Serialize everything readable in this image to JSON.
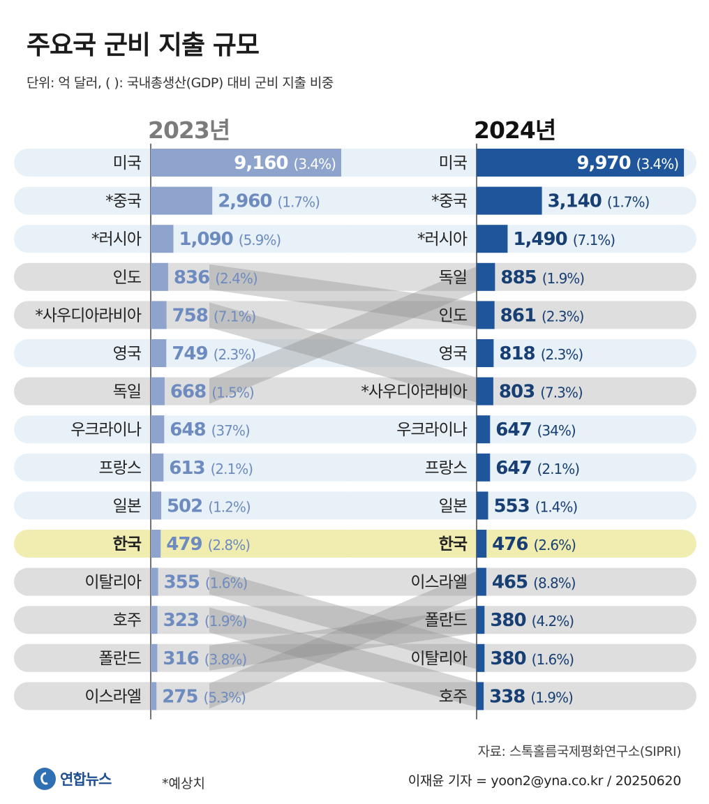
{
  "title": "주요국 군비 지출 규모",
  "subtitle": "단위: 억 달러, ( ): 국내총생산(GDP) 대비 군비 지출 비중",
  "logo_text": "연합뉴스",
  "note": "*예상치",
  "source": "자료: 스톡홀름국제평화연구소(SIPRI)",
  "reporter": "이재윤 기자 = yoon2@yna.co.kr / 20250620",
  "colors": {
    "bar_2023": "#8ea4cc",
    "bar_2024": "#1f569b",
    "label_2023": "#6d8bbf",
    "label_2024": "#173f73",
    "row_blue": "#e9f1f8",
    "row_gray": "#dedede",
    "row_korea": "#f1edb0",
    "connector": "#8a8a8a"
  },
  "chart_data": {
    "type": "bar",
    "units": "억 달러",
    "highlight": "한국",
    "panels": [
      {
        "year": "2023년",
        "rows": [
          {
            "country": "미국",
            "value": 9160,
            "value_label": "9,160",
            "gdp_share": "(3.4%)"
          },
          {
            "country": "*중국",
            "value": 2960,
            "value_label": "2,960",
            "gdp_share": "(1.7%)"
          },
          {
            "country": "*러시아",
            "value": 1090,
            "value_label": "1,090",
            "gdp_share": "(5.9%)"
          },
          {
            "country": "인도",
            "value": 836,
            "value_label": "836",
            "gdp_share": "(2.4%)"
          },
          {
            "country": "*사우디아라비아",
            "value": 758,
            "value_label": "758",
            "gdp_share": "(7.1%)"
          },
          {
            "country": "영국",
            "value": 749,
            "value_label": "749",
            "gdp_share": "(2.3%)"
          },
          {
            "country": "독일",
            "value": 668,
            "value_label": "668",
            "gdp_share": "(1.5%)"
          },
          {
            "country": "우크라이나",
            "value": 648,
            "value_label": "648",
            "gdp_share": "(37%)"
          },
          {
            "country": "프랑스",
            "value": 613,
            "value_label": "613",
            "gdp_share": "(2.1%)"
          },
          {
            "country": "일본",
            "value": 502,
            "value_label": "502",
            "gdp_share": "(1.2%)"
          },
          {
            "country": "한국",
            "value": 479,
            "value_label": "479",
            "gdp_share": "(2.8%)"
          },
          {
            "country": "이탈리아",
            "value": 355,
            "value_label": "355",
            "gdp_share": "(1.6%)"
          },
          {
            "country": "호주",
            "value": 323,
            "value_label": "323",
            "gdp_share": "(1.9%)"
          },
          {
            "country": "폴란드",
            "value": 316,
            "value_label": "316",
            "gdp_share": "(3.8%)"
          },
          {
            "country": "이스라엘",
            "value": 275,
            "value_label": "275",
            "gdp_share": "(5.3%)"
          }
        ]
      },
      {
        "year": "2024년",
        "rows": [
          {
            "country": "미국",
            "value": 9970,
            "value_label": "9,970",
            "gdp_share": "(3.4%)"
          },
          {
            "country": "*중국",
            "value": 3140,
            "value_label": "3,140",
            "gdp_share": "(1.7%)"
          },
          {
            "country": "*러시아",
            "value": 1490,
            "value_label": "1,490",
            "gdp_share": "(7.1%)"
          },
          {
            "country": "독일",
            "value": 885,
            "value_label": "885",
            "gdp_share": "(1.9%)"
          },
          {
            "country": "인도",
            "value": 861,
            "value_label": "861",
            "gdp_share": "(2.3%)"
          },
          {
            "country": "영국",
            "value": 818,
            "value_label": "818",
            "gdp_share": "(2.3%)"
          },
          {
            "country": "*사우디아라비아",
            "value": 803,
            "value_label": "803",
            "gdp_share": "(7.3%)"
          },
          {
            "country": "우크라이나",
            "value": 647,
            "value_label": "647",
            "gdp_share": "(34%)"
          },
          {
            "country": "프랑스",
            "value": 647,
            "value_label": "647",
            "gdp_share": "(2.1%)"
          },
          {
            "country": "일본",
            "value": 553,
            "value_label": "553",
            "gdp_share": "(1.4%)"
          },
          {
            "country": "한국",
            "value": 476,
            "value_label": "476",
            "gdp_share": "(2.6%)"
          },
          {
            "country": "이스라엘",
            "value": 465,
            "value_label": "465",
            "gdp_share": "(8.8%)"
          },
          {
            "country": "폴란드",
            "value": 380,
            "value_label": "380",
            "gdp_share": "(4.2%)"
          },
          {
            "country": "이탈리아",
            "value": 380,
            "value_label": "380",
            "gdp_share": "(1.6%)"
          },
          {
            "country": "호주",
            "value": 338,
            "value_label": "338",
            "gdp_share": "(1.9%)"
          }
        ]
      }
    ],
    "rank_changes": [
      {
        "country": "인도",
        "from_rank": 4,
        "to_rank": 5
      },
      {
        "country": "독일",
        "from_rank": 7,
        "to_rank": 4
      },
      {
        "country": "*사우디아라비아",
        "from_rank": 5,
        "to_rank": 7
      },
      {
        "country": "이스라엘",
        "from_rank": 15,
        "to_rank": 12
      },
      {
        "country": "이탈리아",
        "from_rank": 12,
        "to_rank": 14
      },
      {
        "country": "호주",
        "from_rank": 13,
        "to_rank": 15
      },
      {
        "country": "폴란드",
        "from_rank": 14,
        "to_rank": 13
      }
    ]
  }
}
